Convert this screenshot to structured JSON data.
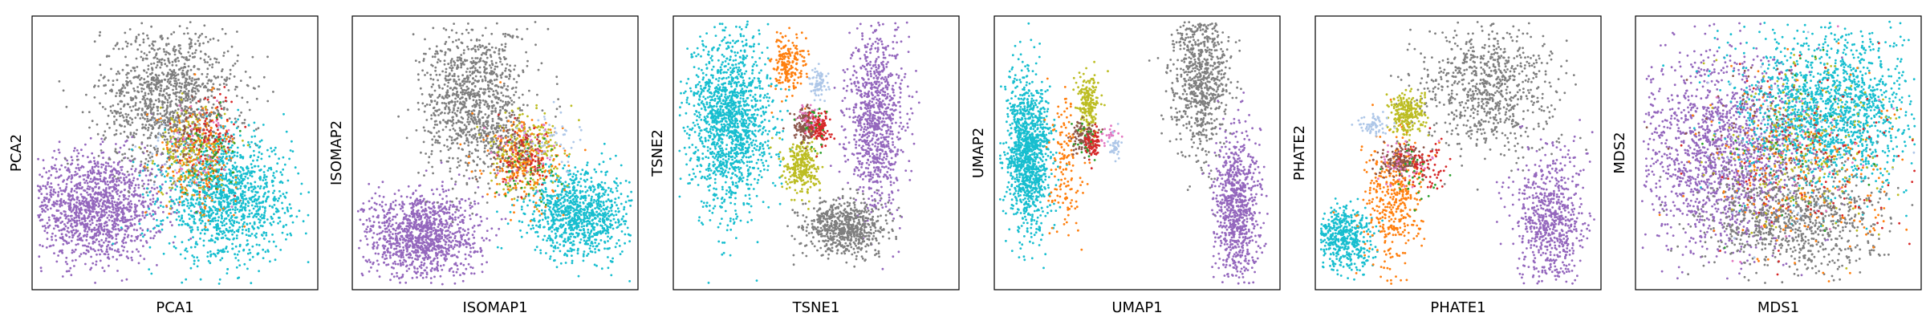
{
  "chart_data": [
    {
      "type": "scatter",
      "xlabel": "PCA1",
      "ylabel": "PCA2",
      "xlim": [
        0,
        1
      ],
      "ylim": [
        0,
        1
      ],
      "series": [
        {
          "color": "#9467bd",
          "center": [
            0.22,
            0.3
          ],
          "spread": [
            0.12,
            0.1
          ],
          "count": 1400
        },
        {
          "color": "#7f7f7f",
          "center": [
            0.48,
            0.7
          ],
          "spread": [
            0.12,
            0.13
          ],
          "count": 1200
        },
        {
          "color": "#17becf",
          "center": [
            0.68,
            0.33
          ],
          "spread": [
            0.11,
            0.11
          ],
          "count": 1300
        },
        {
          "color": "#bcbd22",
          "center": [
            0.56,
            0.5
          ],
          "spread": [
            0.06,
            0.08
          ],
          "count": 220
        },
        {
          "color": "#ff7f0e",
          "center": [
            0.58,
            0.48
          ],
          "spread": [
            0.07,
            0.1
          ],
          "count": 180
        },
        {
          "color": "#d62728",
          "center": [
            0.63,
            0.58
          ],
          "spread": [
            0.05,
            0.08
          ],
          "count": 90
        },
        {
          "color": "#8c564b",
          "center": [
            0.55,
            0.55
          ],
          "spread": [
            0.05,
            0.06
          ],
          "count": 60
        },
        {
          "color": "#e377c2",
          "center": [
            0.58,
            0.52
          ],
          "spread": [
            0.06,
            0.08
          ],
          "count": 40
        },
        {
          "color": "#aec7e8",
          "center": [
            0.52,
            0.5
          ],
          "spread": [
            0.06,
            0.08
          ],
          "count": 40
        },
        {
          "color": "#2ca02c",
          "center": [
            0.6,
            0.5
          ],
          "spread": [
            0.06,
            0.08
          ],
          "count": 40
        }
      ]
    },
    {
      "type": "scatter",
      "xlabel": "ISOMAP1",
      "ylabel": "ISOMAP2",
      "xlim": [
        0,
        1
      ],
      "ylim": [
        0,
        1
      ],
      "series": [
        {
          "color": "#9467bd",
          "center": [
            0.24,
            0.2
          ],
          "spread": [
            0.1,
            0.08
          ],
          "count": 1200
        },
        {
          "color": "#7f7f7f",
          "center": [
            0.43,
            0.68
          ],
          "spread": [
            0.09,
            0.14
          ],
          "count": 1100
        },
        {
          "color": "#17becf",
          "center": [
            0.8,
            0.28
          ],
          "spread": [
            0.09,
            0.08
          ],
          "count": 1000
        },
        {
          "color": "#bcbd22",
          "center": [
            0.6,
            0.5
          ],
          "spread": [
            0.06,
            0.07
          ],
          "count": 260
        },
        {
          "color": "#ff7f0e",
          "center": [
            0.6,
            0.45
          ],
          "spread": [
            0.07,
            0.08
          ],
          "count": 220
        },
        {
          "color": "#d62728",
          "center": [
            0.62,
            0.48
          ],
          "spread": [
            0.05,
            0.05
          ],
          "count": 90
        },
        {
          "color": "#8c564b",
          "center": [
            0.58,
            0.5
          ],
          "spread": [
            0.05,
            0.05
          ],
          "count": 60
        },
        {
          "color": "#e377c2",
          "center": [
            0.6,
            0.47
          ],
          "spread": [
            0.06,
            0.07
          ],
          "count": 40
        },
        {
          "color": "#aec7e8",
          "center": [
            0.7,
            0.55
          ],
          "spread": [
            0.05,
            0.05
          ],
          "count": 50
        },
        {
          "color": "#2ca02c",
          "center": [
            0.62,
            0.45
          ],
          "spread": [
            0.06,
            0.07
          ],
          "count": 40
        }
      ]
    },
    {
      "type": "scatter",
      "xlabel": "TSNE1",
      "ylabel": "TSNE2",
      "xlim": [
        0,
        1
      ],
      "ylim": [
        0,
        1
      ],
      "series": [
        {
          "color": "#17becf",
          "center": [
            0.2,
            0.62
          ],
          "spread": [
            0.07,
            0.16
          ],
          "count": 1500
        },
        {
          "color": "#9467bd",
          "center": [
            0.71,
            0.62
          ],
          "spread": [
            0.05,
            0.16
          ],
          "count": 900
        },
        {
          "color": "#7f7f7f",
          "center": [
            0.6,
            0.23
          ],
          "spread": [
            0.07,
            0.05
          ],
          "count": 700
        },
        {
          "color": "#bcbd22",
          "center": [
            0.45,
            0.45
          ],
          "spread": [
            0.03,
            0.05
          ],
          "count": 300
        },
        {
          "color": "#ff7f0e",
          "center": [
            0.4,
            0.82
          ],
          "spread": [
            0.03,
            0.06
          ],
          "count": 200
        },
        {
          "color": "#8c564b",
          "center": [
            0.46,
            0.6
          ],
          "spread": [
            0.02,
            0.03
          ],
          "count": 150
        },
        {
          "color": "#d62728",
          "center": [
            0.51,
            0.59
          ],
          "spread": [
            0.02,
            0.03
          ],
          "count": 120
        },
        {
          "color": "#aec7e8",
          "center": [
            0.51,
            0.75
          ],
          "spread": [
            0.015,
            0.03
          ],
          "count": 80
        },
        {
          "color": "#e377c2",
          "center": [
            0.48,
            0.62
          ],
          "spread": [
            0.02,
            0.03
          ],
          "count": 30
        },
        {
          "color": "#2ca02c",
          "center": [
            0.5,
            0.58
          ],
          "spread": [
            0.03,
            0.04
          ],
          "count": 20
        }
      ]
    },
    {
      "type": "scatter",
      "xlabel": "UMAP1",
      "ylabel": "UMAP2",
      "xlim": [
        0,
        1
      ],
      "ylim": [
        0,
        1
      ],
      "series": [
        {
          "color": "#17becf",
          "center": [
            0.12,
            0.5
          ],
          "spread": [
            0.04,
            0.14
          ],
          "count": 1200
        },
        {
          "color": "#7f7f7f",
          "center": [
            0.72,
            0.78
          ],
          "spread": [
            0.05,
            0.14
          ],
          "count": 800
        },
        {
          "color": "#9467bd",
          "center": [
            0.85,
            0.3
          ],
          "spread": [
            0.04,
            0.14
          ],
          "count": 800
        },
        {
          "color": "#bcbd22",
          "center": [
            0.33,
            0.68
          ],
          "spread": [
            0.02,
            0.05
          ],
          "count": 200
        },
        {
          "color": "#ff7f0e",
          "center": [
            0.25,
            0.45
          ],
          "spread": [
            0.03,
            0.12
          ],
          "count": 150
        },
        {
          "color": "#8c564b",
          "center": [
            0.31,
            0.56
          ],
          "spread": [
            0.02,
            0.03
          ],
          "count": 100
        },
        {
          "color": "#d62728",
          "center": [
            0.34,
            0.53
          ],
          "spread": [
            0.015,
            0.03
          ],
          "count": 80
        },
        {
          "color": "#aec7e8",
          "center": [
            0.42,
            0.53
          ],
          "spread": [
            0.01,
            0.03
          ],
          "count": 40
        },
        {
          "color": "#e377c2",
          "center": [
            0.4,
            0.57
          ],
          "spread": [
            0.02,
            0.02
          ],
          "count": 20
        },
        {
          "color": "#2ca02c",
          "center": [
            0.32,
            0.55
          ],
          "spread": [
            0.03,
            0.04
          ],
          "count": 20
        }
      ]
    },
    {
      "type": "scatter",
      "xlabel": "PHATE1",
      "ylabel": "PHATE2",
      "xlim": [
        0,
        1
      ],
      "ylim": [
        0,
        1
      ],
      "series": [
        {
          "color": "#7f7f7f",
          "center": [
            0.6,
            0.74
          ],
          "spread": [
            0.12,
            0.12
          ],
          "count": 800
        },
        {
          "color": "#9467bd",
          "center": [
            0.82,
            0.25
          ],
          "spread": [
            0.06,
            0.13
          ],
          "count": 700
        },
        {
          "color": "#17becf",
          "center": [
            0.1,
            0.18
          ],
          "spread": [
            0.05,
            0.06
          ],
          "count": 500
        },
        {
          "color": "#ff7f0e",
          "center": [
            0.27,
            0.32
          ],
          "spread": [
            0.05,
            0.12
          ],
          "count": 400
        },
        {
          "color": "#bcbd22",
          "center": [
            0.32,
            0.64
          ],
          "spread": [
            0.03,
            0.04
          ],
          "count": 250
        },
        {
          "color": "#8c564b",
          "center": [
            0.3,
            0.47
          ],
          "spread": [
            0.04,
            0.03
          ],
          "count": 150
        },
        {
          "color": "#aec7e8",
          "center": [
            0.2,
            0.6
          ],
          "spread": [
            0.03,
            0.02
          ],
          "count": 60
        },
        {
          "color": "#d62728",
          "center": [
            0.38,
            0.46
          ],
          "spread": [
            0.04,
            0.04
          ],
          "count": 80
        },
        {
          "color": "#e377c2",
          "center": [
            0.3,
            0.45
          ],
          "spread": [
            0.05,
            0.05
          ],
          "count": 40
        },
        {
          "color": "#2ca02c",
          "center": [
            0.35,
            0.42
          ],
          "spread": [
            0.05,
            0.05
          ],
          "count": 30
        }
      ]
    },
    {
      "type": "scatter",
      "xlabel": "MDS1",
      "ylabel": "MDS2",
      "xlim": [
        0,
        1
      ],
      "ylim": [
        0,
        1
      ],
      "series": [
        {
          "color": "#9467bd",
          "center": [
            0.3,
            0.5
          ],
          "spread": [
            0.15,
            0.18
          ],
          "count": 1600
        },
        {
          "color": "#17becf",
          "center": [
            0.68,
            0.66
          ],
          "spread": [
            0.15,
            0.14
          ],
          "count": 1600
        },
        {
          "color": "#7f7f7f",
          "center": [
            0.56,
            0.26
          ],
          "spread": [
            0.16,
            0.1
          ],
          "count": 900
        },
        {
          "color": "#bcbd22",
          "center": [
            0.58,
            0.52
          ],
          "spread": [
            0.15,
            0.15
          ],
          "count": 250
        },
        {
          "color": "#ff7f0e",
          "center": [
            0.6,
            0.45
          ],
          "spread": [
            0.18,
            0.2
          ],
          "count": 220
        },
        {
          "color": "#d62728",
          "center": [
            0.63,
            0.48
          ],
          "spread": [
            0.16,
            0.18
          ],
          "count": 120
        },
        {
          "color": "#8c564b",
          "center": [
            0.45,
            0.58
          ],
          "spread": [
            0.12,
            0.12
          ],
          "count": 80
        },
        {
          "color": "#e377c2",
          "center": [
            0.55,
            0.5
          ],
          "spread": [
            0.16,
            0.18
          ],
          "count": 50
        },
        {
          "color": "#aec7e8",
          "center": [
            0.5,
            0.55
          ],
          "spread": [
            0.16,
            0.18
          ],
          "count": 50
        },
        {
          "color": "#2ca02c",
          "center": [
            0.55,
            0.5
          ],
          "spread": [
            0.16,
            0.18
          ],
          "count": 40
        }
      ]
    }
  ]
}
